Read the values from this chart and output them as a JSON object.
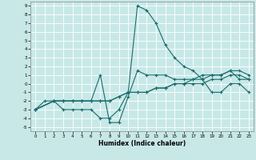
{
  "xlabel": "Humidex (Indice chaleur)",
  "bg_color": "#c8e8e8",
  "grid_color": "#ffffff",
  "line_color": "#1a6b6b",
  "xlim": [
    -0.5,
    23.5
  ],
  "ylim": [
    -5.5,
    9.5
  ],
  "xticks": [
    0,
    1,
    2,
    3,
    4,
    5,
    6,
    7,
    8,
    9,
    10,
    11,
    12,
    13,
    14,
    15,
    16,
    17,
    18,
    19,
    20,
    21,
    22,
    23
  ],
  "yticks": [
    -5,
    -4,
    -3,
    -2,
    -1,
    0,
    1,
    2,
    3,
    4,
    5,
    6,
    7,
    8,
    9
  ],
  "line1_x": [
    0,
    1,
    2,
    3,
    4,
    5,
    6,
    7,
    8,
    9,
    10,
    11,
    12,
    13,
    14,
    15,
    16,
    17,
    18,
    19,
    20,
    21,
    22,
    23
  ],
  "line1_y": [
    -3,
    -2,
    -2,
    -3,
    -3,
    -3,
    -3,
    -4,
    -4,
    -3,
    -1,
    9,
    8.5,
    7,
    4.5,
    3,
    2,
    1.5,
    0.5,
    -1,
    -1,
    0,
    0,
    -1
  ],
  "line2_x": [
    0,
    2,
    3,
    4,
    5,
    6,
    7,
    8,
    9,
    10,
    11,
    12,
    13,
    14,
    15,
    16,
    17,
    18,
    19,
    20,
    21,
    22,
    23
  ],
  "line2_y": [
    -3,
    -2,
    -2,
    -2,
    -2,
    -2,
    -2,
    -2,
    -1.5,
    -1,
    -1,
    -1,
    -0.5,
    -0.5,
    0,
    0,
    0,
    0,
    0.5,
    0.5,
    1,
    1,
    0.5
  ],
  "line3_x": [
    0,
    2,
    3,
    4,
    5,
    6,
    7,
    8,
    9,
    10,
    11,
    12,
    13,
    14,
    15,
    16,
    17,
    18,
    19,
    20,
    21,
    22,
    23
  ],
  "line3_y": [
    -3,
    -2,
    -2,
    -2,
    -2,
    -2,
    -2,
    -2,
    -1.5,
    -1,
    -1,
    -1,
    -0.5,
    -0.5,
    0,
    0,
    0.5,
    0.5,
    1,
    1,
    1.5,
    1.5,
    1
  ],
  "line4_x": [
    0,
    2,
    3,
    4,
    5,
    6,
    7,
    8,
    9,
    10,
    11,
    12,
    13,
    14,
    15,
    16,
    17,
    18,
    19,
    20,
    21,
    22,
    23
  ],
  "line4_y": [
    -3,
    -2,
    -2,
    -2,
    -2,
    -2,
    1,
    -4.5,
    -4.5,
    -1.5,
    1.5,
    1,
    1,
    1,
    0.5,
    0.5,
    0.5,
    1,
    1,
    1,
    1.5,
    0.5,
    0.5
  ]
}
